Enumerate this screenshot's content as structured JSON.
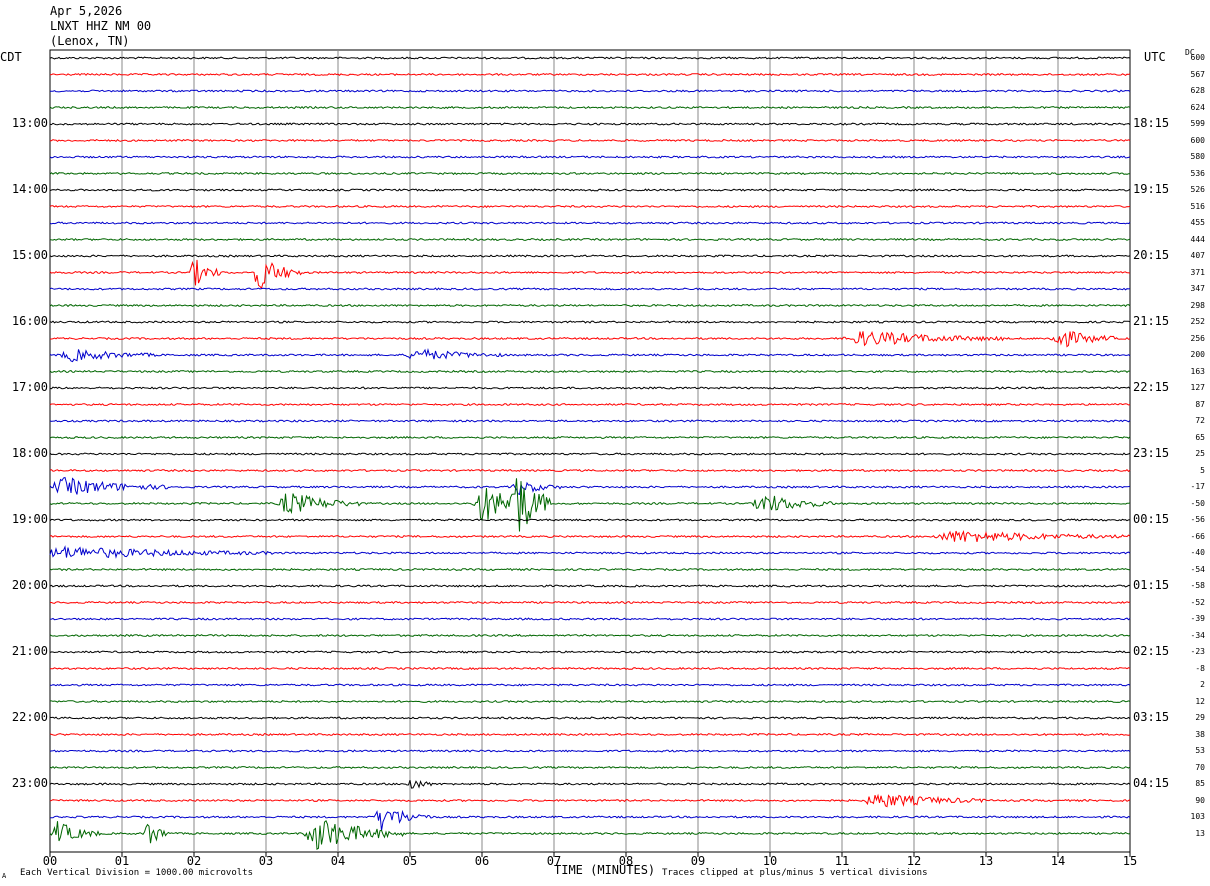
{
  "header": {
    "date": "Apr 5,2026",
    "station": "LNXT HHZ NM 00",
    "location": "(Lenox, TN)"
  },
  "left_tz": "CDT",
  "right_tz": "UTC",
  "dc_label": "DC",
  "footer": {
    "scale": "Each Vertical Division = 1000.00 microvolts",
    "clip": "Traces clipped at plus/minus 5 vertical divisions",
    "corner_mark": "A"
  },
  "colors": {
    "trace_cycle": [
      "#000000",
      "#ff0000",
      "#0000cc",
      "#006600"
    ],
    "grid": "#888888"
  },
  "chart_data": {
    "type": "line",
    "title": "LNXT HHZ NM 00",
    "xlabel": "TIME (MINUTES)",
    "ylabel": "",
    "xlim": [
      0,
      15
    ],
    "x_ticks": [
      "00",
      "01",
      "02",
      "03",
      "04",
      "05",
      "06",
      "07",
      "08",
      "09",
      "10",
      "11",
      "12",
      "13",
      "14",
      "15"
    ],
    "traces_per_hour": 4,
    "minutes_per_trace": 15,
    "left_hour_labels": [
      "13:00",
      "14:00",
      "15:00",
      "16:00",
      "17:00",
      "18:00",
      "19:00",
      "20:00",
      "21:00",
      "22:00",
      "23:00"
    ],
    "right_hour_labels": [
      "18:15",
      "19:15",
      "20:15",
      "21:15",
      "22:15",
      "23:15",
      "00:15",
      "01:15",
      "02:15",
      "03:15",
      "04:15"
    ],
    "dc_offsets": [
      "600",
      "567",
      "628",
      "624",
      "599",
      "600",
      "580",
      "536",
      "526",
      "516",
      "455",
      "444",
      "407",
      "371",
      "347",
      "298",
      "252",
      "256",
      "200",
      "163",
      "127",
      "87",
      "72",
      "65",
      "25",
      "5",
      "-17",
      "-50",
      "-56",
      "-66",
      "-40",
      "-54",
      "-58",
      "-52",
      "-39",
      "-34",
      "-23",
      "-8",
      "2",
      "12",
      "29",
      "38",
      "53",
      "70",
      "85",
      "90",
      "103",
      "13"
    ],
    "events": [
      {
        "trace": 13,
        "minute": 2.0,
        "amplitude": 1.0,
        "duration_min": 0.4
      },
      {
        "trace": 13,
        "minute": 2.9,
        "amplitude": 1.2,
        "duration_min": 0.6
      },
      {
        "trace": 17,
        "minute": 11.3,
        "amplitude": 0.5,
        "duration_min": 2.0
      },
      {
        "trace": 17,
        "minute": 14.0,
        "amplitude": 0.7,
        "duration_min": 0.8
      },
      {
        "trace": 18,
        "minute": 0.3,
        "amplitude": 0.4,
        "duration_min": 1.2
      },
      {
        "trace": 18,
        "minute": 5.1,
        "amplitude": 0.4,
        "duration_min": 1.2
      },
      {
        "trace": 26,
        "minute": 0.2,
        "amplitude": 0.6,
        "duration_min": 1.5
      },
      {
        "trace": 26,
        "minute": 6.5,
        "amplitude": 0.5,
        "duration_min": 0.6
      },
      {
        "trace": 27,
        "minute": 3.3,
        "amplitude": 0.8,
        "duration_min": 1.0
      },
      {
        "trace": 27,
        "minute": 6.0,
        "amplitude": 1.3,
        "duration_min": 0.9
      },
      {
        "trace": 27,
        "minute": 6.45,
        "amplitude": 2.4,
        "duration_min": 0.5
      },
      {
        "trace": 27,
        "minute": 9.9,
        "amplitude": 0.7,
        "duration_min": 1.0
      },
      {
        "trace": 29,
        "minute": 12.6,
        "amplitude": 0.4,
        "duration_min": 2.4
      },
      {
        "trace": 30,
        "minute": 0.2,
        "amplitude": 0.4,
        "duration_min": 3.0
      },
      {
        "trace": 44,
        "minute": 5.0,
        "amplitude": 0.5,
        "duration_min": 0.3
      },
      {
        "trace": 45,
        "minute": 11.5,
        "amplitude": 0.5,
        "duration_min": 1.5
      },
      {
        "trace": 46,
        "minute": 4.6,
        "amplitude": 0.9,
        "duration_min": 0.7
      },
      {
        "trace": 47,
        "minute": 0.1,
        "amplitude": 0.8,
        "duration_min": 0.6
      },
      {
        "trace": 47,
        "minute": 1.35,
        "amplitude": 1.1,
        "duration_min": 0.3
      },
      {
        "trace": 47,
        "minute": 3.7,
        "amplitude": 1.2,
        "duration_min": 1.2
      }
    ]
  }
}
